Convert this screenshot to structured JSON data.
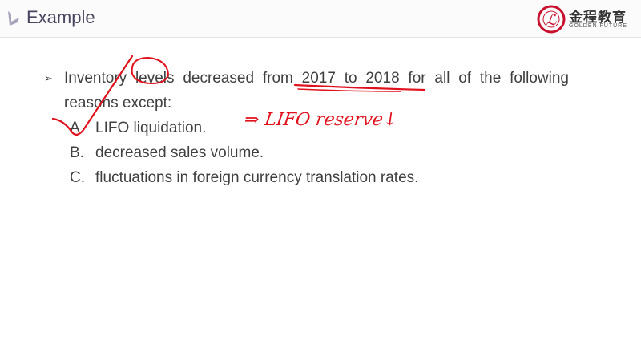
{
  "header": {
    "title": "Example",
    "brand_cn": "金程教育",
    "brand_en": "GOLDEN FUTURE"
  },
  "question": {
    "stem": "Inventory levels decreased from 2017 to 2018 for all of the following reasons except:",
    "options": [
      {
        "letter": "A.",
        "text": "LIFO liquidation."
      },
      {
        "letter": "B.",
        "text": "decreased sales volume."
      },
      {
        "letter": "C.",
        "text": "fluctuations in foreign currency translation rates."
      }
    ]
  },
  "annotation": {
    "note": "⇒ LIFO reserve↓",
    "color": "#e0101c"
  },
  "colors": {
    "title": "#4a4560",
    "text": "#404040",
    "accent": "#c8102e"
  }
}
